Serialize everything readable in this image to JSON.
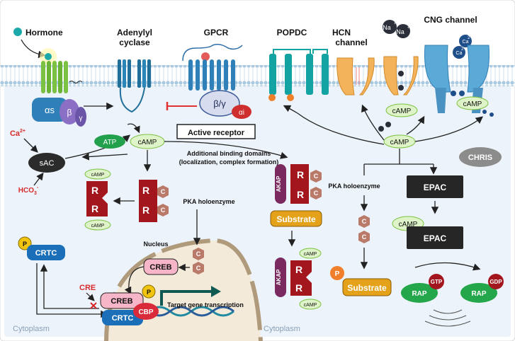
{
  "labels": {
    "hormone": "Hormone",
    "adenylyl_cyclase_line1": "Adenylyl",
    "adenylyl_cyclase_line2": "cyclase",
    "gpcr": "GPCR",
    "popdc": "POPDC",
    "hcn_line1": "HCN",
    "hcn_line2": "channel",
    "cng_channel": "CNG channel",
    "active_receptor": "Active receptor",
    "binding_line1": "Additional binding domains",
    "binding_line2": "(localization, complex formation)",
    "pka_holoenzyme": "PKA holoenzyme",
    "nucleus": "Nucleus",
    "target_gene": "Target gene transcription",
    "cytoplasm": "Cytoplasm",
    "chris": "CHRIS"
  },
  "molecules": {
    "alpha_s": "αs",
    "beta": "β",
    "gamma": "γ",
    "beta_gamma": "β/γ",
    "alpha_i": "αi",
    "atp": "ATP",
    "camp": "cAMP",
    "sac": "sAC",
    "ca": "Ca",
    "ca_sup": "2+",
    "hco3": "HCO",
    "hco3_sub": "3",
    "hco3_sup": "-",
    "na": "Na",
    "na_sup": "+",
    "r": "R",
    "c": "C",
    "akap": "AKAP",
    "substrate": "Substrate",
    "epac": "EPAC",
    "creb": "CREB",
    "crtc": "CRTC",
    "cre": "CRE",
    "cbp": "CBP",
    "p": "P",
    "rap": "RAP",
    "gtp": "GTP",
    "gdp": "GDP"
  },
  "colors": {
    "membrane": "#b9d6ea",
    "receptor_green": "#7cc242",
    "cyclase_blue": "#1f6f9a",
    "gprotein_blue": "#2f7fb8",
    "gprotein_purple": "#8a6fc4",
    "popdc_teal": "#14a3a3",
    "hcn_orange": "#f3b35a",
    "cng_blue": "#5aa9d6",
    "pka_red": "#a3161e",
    "catalytic": "#b97a6a",
    "camp_fill": "#dff3c8",
    "atp_green": "#23a04b",
    "substrate_gold": "#e3a21a",
    "akap_purple": "#7a2a5e",
    "epac_dark": "#262626",
    "rap_green": "#24a64a",
    "crtc_blue": "#1a6fb8",
    "creb_pink": "#f6b6c8",
    "cbp_red": "#d92b3a",
    "chris_gray": "#8c8c8c",
    "inhibit_red": "#e23232"
  }
}
